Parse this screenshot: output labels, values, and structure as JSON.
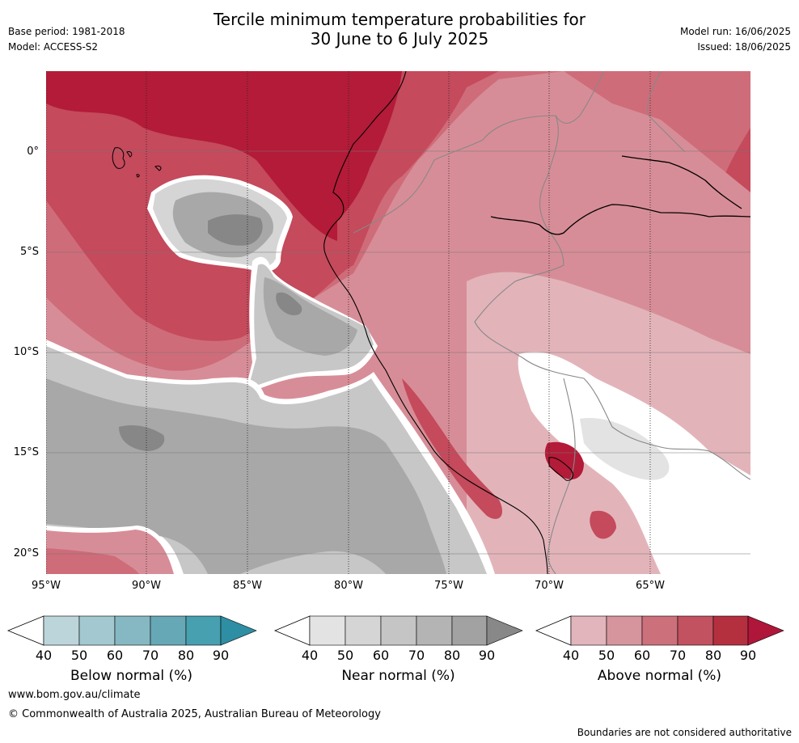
{
  "header": {
    "title_line1": "Tercile minimum temperature probabilities for",
    "title_line2": "30 June to 6 July 2025",
    "base_period": "Base period: 1981-2018",
    "model": "Model: ACCESS-S2",
    "model_run": "Model run: 16/06/2025",
    "issued": "Issued: 18/06/2025"
  },
  "map": {
    "lat_labels": [
      "0°",
      "5°S",
      "10°S",
      "15°S",
      "20°S"
    ],
    "lon_labels": [
      "95°W",
      "90°W",
      "85°W",
      "80°W",
      "75°W",
      "70°W",
      "65°W"
    ],
    "colors": {
      "above_90": "#b31b38",
      "above_80": "#c44a5c",
      "above_70": "#cf6c79",
      "above_60": "#d78d97",
      "above_50": "#e2b4ba",
      "near_90": "#878787",
      "near_70": "#a8a8a8",
      "near_60": "#c7c7c7",
      "near_50": "#dcdcdc",
      "white": "#ffffff"
    }
  },
  "legend": {
    "below": {
      "label": "Below normal (%)",
      "ticks": [
        "40",
        "50",
        "60",
        "70",
        "80",
        "90"
      ],
      "colors": [
        "#bcd5da",
        "#a3c8cf",
        "#86b8c3",
        "#66a8b5",
        "#46a0b0",
        "#2e8ea3"
      ]
    },
    "near": {
      "label": "Near normal (%)",
      "ticks": [
        "40",
        "50",
        "60",
        "70",
        "80",
        "90"
      ],
      "colors": [
        "#e3e3e3",
        "#d5d5d5",
        "#c5c5c5",
        "#b4b4b4",
        "#a2a2a2",
        "#888888"
      ]
    },
    "above": {
      "label": "Above normal (%)",
      "ticks": [
        "40",
        "50",
        "60",
        "70",
        "80",
        "90"
      ],
      "colors": [
        "#e1b5bb",
        "#d6949d",
        "#cc707c",
        "#c2525f",
        "#b5303f",
        "#b0163a"
      ]
    }
  },
  "footer": {
    "website": "www.bom.gov.au/climate",
    "copyright": "© Commonwealth of Australia 2025, Australian Bureau of Meteorology",
    "disclaimer": "Boundaries are not considered authoritative"
  }
}
